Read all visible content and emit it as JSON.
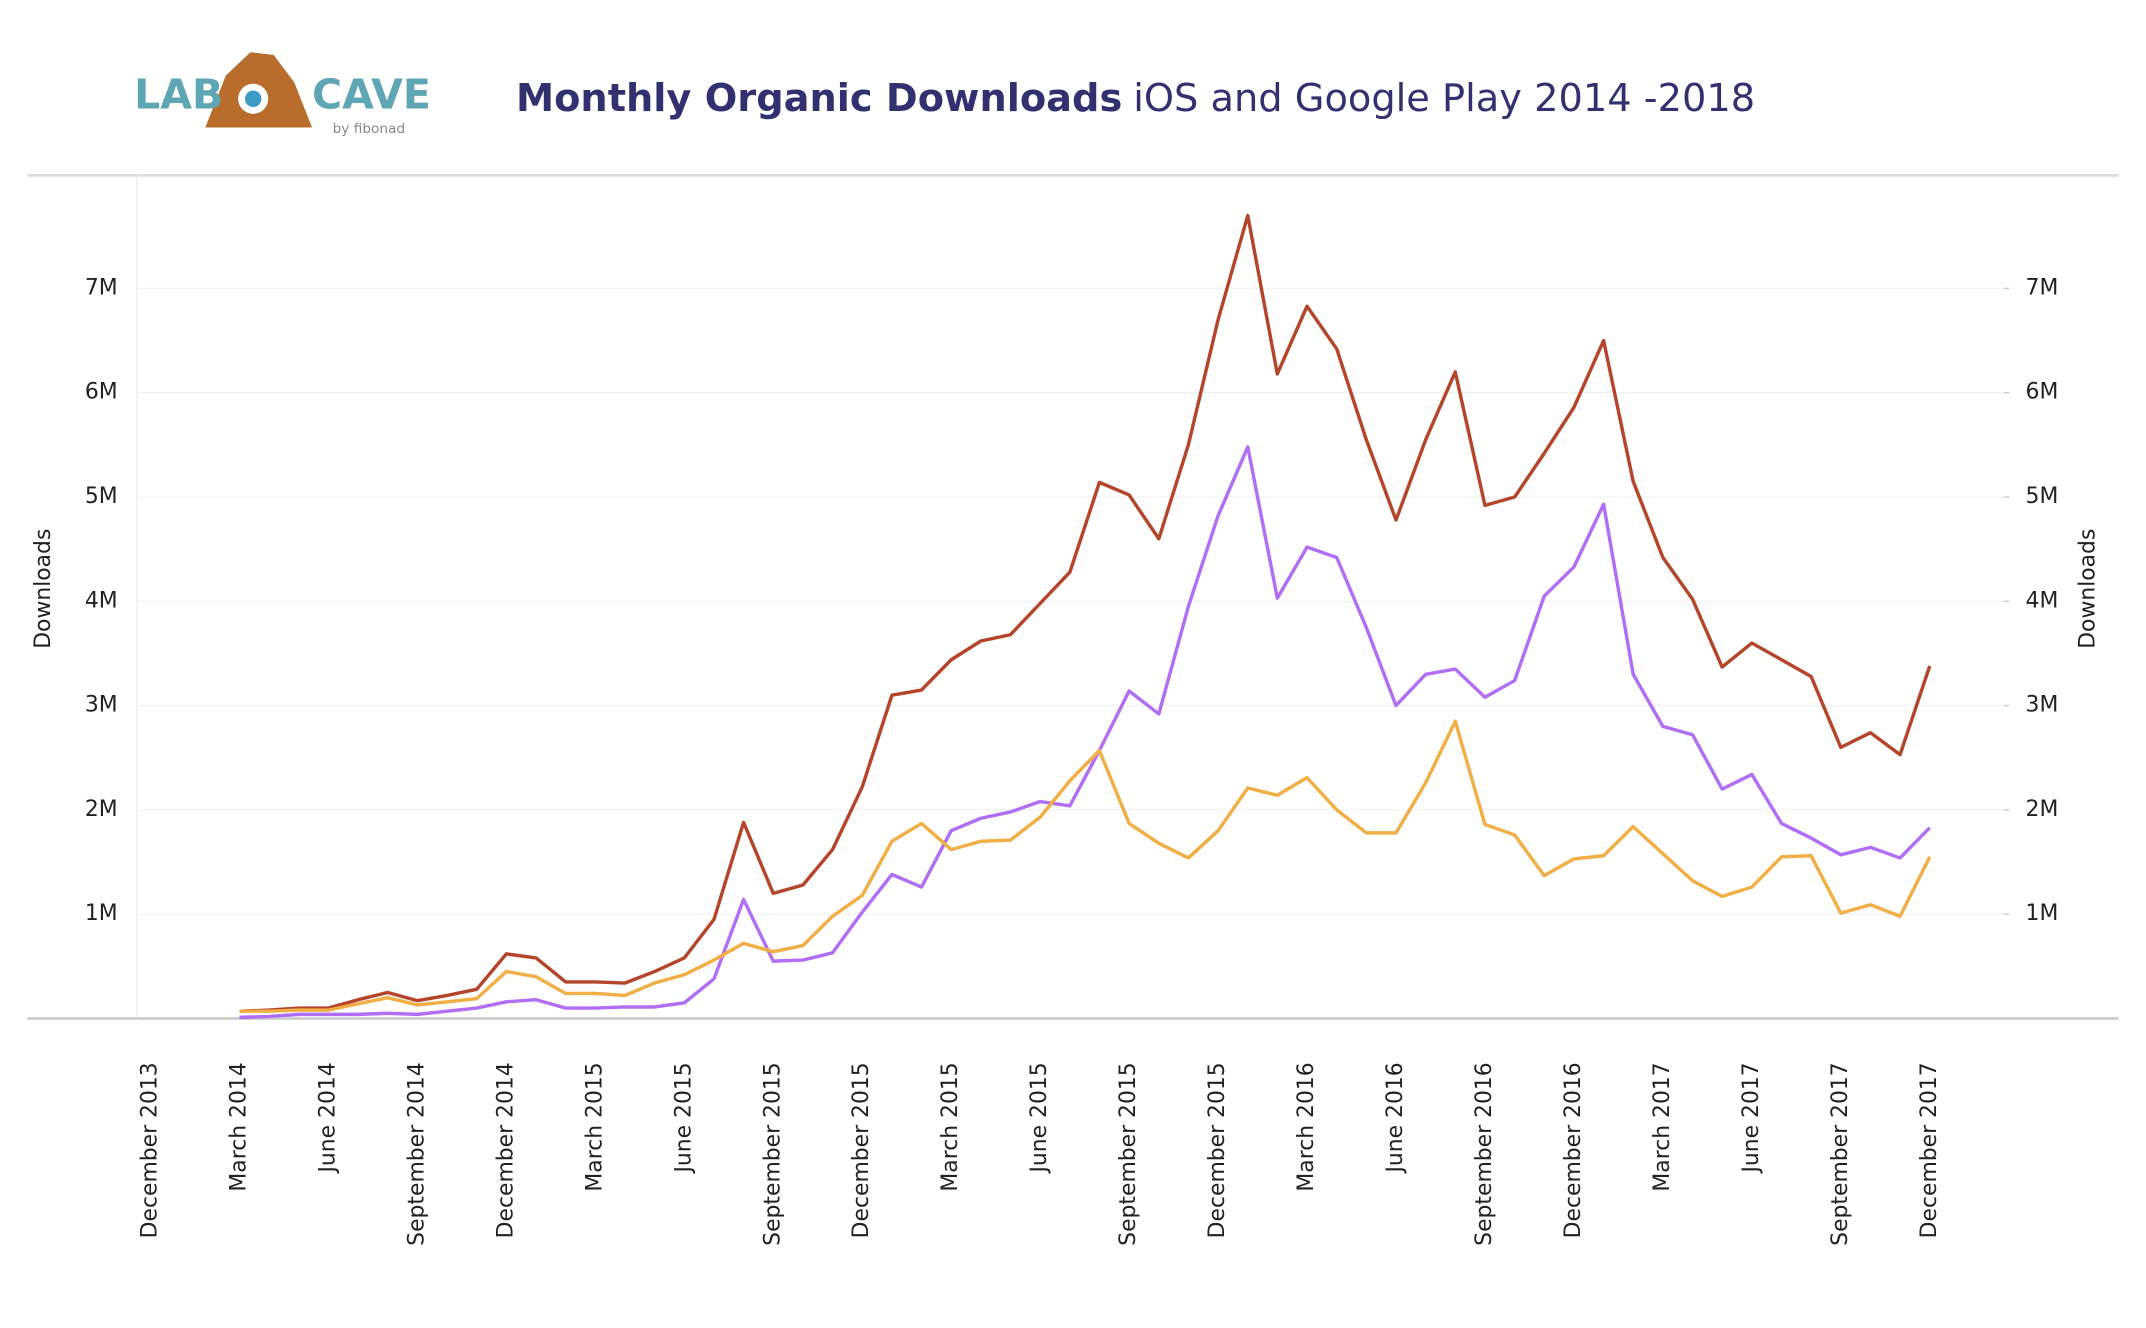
{
  "logo": {
    "left": "LAB",
    "right": "CAVE",
    "tagline": "by fibonad"
  },
  "chart_data": {
    "type": "line",
    "title": "Monthly Organic Downloads",
    "subtitle": "iOS and Google Play 2014 -2018",
    "y_label": "Downloads",
    "y2_label": "Downloads",
    "categories": [
      "December 2013",
      null,
      null,
      "March 2014",
      null,
      null,
      "June 2014",
      null,
      null,
      "September 2014",
      null,
      null,
      "December 2014",
      null,
      null,
      "March 2015",
      null,
      null,
      "June 2015",
      null,
      null,
      "September 2015",
      null,
      null,
      "December 2015",
      null,
      null,
      "March 2015",
      null,
      null,
      "June 2015",
      null,
      null,
      "September 2015",
      null,
      null,
      "December 2015",
      null,
      null,
      "March 2016",
      null,
      null,
      "June 2016",
      null,
      null,
      "September 2016",
      null,
      null,
      "December 2016",
      null,
      null,
      "March 2017",
      null,
      null,
      "June 2017",
      null,
      null,
      "September 2017",
      null,
      null,
      "December 2017"
    ],
    "ylim": [
      0,
      8
    ],
    "yticks": [
      {
        "value": 1,
        "label": "1M"
      },
      {
        "value": 2,
        "label": "2M"
      },
      {
        "value": 3,
        "label": "3M"
      },
      {
        "value": 4,
        "label": "4M"
      },
      {
        "value": 5,
        "label": "5M"
      },
      {
        "value": 6,
        "label": "6M"
      },
      {
        "value": 7,
        "label": "7M"
      }
    ],
    "y2lim": [
      0,
      8
    ],
    "y2ticks": [
      {
        "value": 1,
        "label": "1M"
      },
      {
        "value": 2,
        "label": "2M"
      },
      {
        "value": 3,
        "label": "3M"
      },
      {
        "value": 4,
        "label": "4M"
      },
      {
        "value": 5,
        "label": "5M"
      },
      {
        "value": 6,
        "label": "6M"
      },
      {
        "value": 7,
        "label": "7M"
      }
    ],
    "grid": true,
    "series": [
      {
        "color": "#b5452a",
        "values": [
          null,
          null,
          null,
          0.07,
          0.08,
          0.1,
          0.1,
          0.18,
          0.25,
          0.17,
          0.22,
          0.28,
          0.62,
          0.58,
          0.35,
          0.35,
          0.34,
          0.45,
          0.58,
          0.95,
          1.88,
          1.2,
          1.28,
          1.62,
          2.22,
          3.1,
          3.15,
          3.44,
          3.62,
          3.68,
          3.98,
          4.28,
          5.14,
          5.02,
          4.6,
          5.5,
          6.7,
          7.7,
          6.18,
          6.83,
          6.42,
          5.55,
          4.78,
          5.55,
          6.2,
          4.92,
          5.0,
          5.42,
          5.86,
          6.5,
          5.15,
          4.42,
          4.02,
          3.37,
          3.6,
          3.44,
          3.28,
          2.6,
          2.74,
          2.53,
          3.38
        ]
      },
      {
        "color": "#b06ef5",
        "values": [
          null,
          null,
          null,
          0.01,
          0.02,
          0.04,
          0.04,
          0.04,
          0.05,
          0.04,
          0.07,
          0.1,
          0.16,
          0.18,
          0.1,
          0.1,
          0.11,
          0.11,
          0.15,
          0.38,
          1.14,
          0.55,
          0.56,
          0.63,
          1.02,
          1.38,
          1.26,
          1.8,
          1.92,
          1.98,
          2.08,
          2.04,
          2.57,
          3.14,
          2.92,
          3.95,
          4.82,
          5.48,
          4.03,
          4.52,
          4.42,
          3.75,
          3.0,
          3.3,
          3.35,
          3.08,
          3.24,
          4.05,
          4.33,
          4.93,
          3.3,
          2.8,
          2.72,
          2.2,
          2.34,
          1.87,
          1.73,
          1.57,
          1.64,
          1.54,
          1.83
        ]
      },
      {
        "color": "#f0ae45",
        "values": [
          null,
          null,
          null,
          0.07,
          0.07,
          0.08,
          0.08,
          0.14,
          0.2,
          0.13,
          0.16,
          0.19,
          0.45,
          0.4,
          0.24,
          0.24,
          0.22,
          0.34,
          0.42,
          0.56,
          0.72,
          0.64,
          0.7,
          0.98,
          1.18,
          1.7,
          1.87,
          1.62,
          1.7,
          1.71,
          1.93,
          2.28,
          2.57,
          1.87,
          1.68,
          1.54,
          1.8,
          2.21,
          2.14,
          2.31,
          2.0,
          1.78,
          1.78,
          2.26,
          2.85,
          1.86,
          1.76,
          1.37,
          1.53,
          1.56,
          1.84,
          1.58,
          1.32,
          1.17,
          1.26,
          1.55,
          1.56,
          1.01,
          1.09,
          0.98,
          1.55
        ]
      }
    ]
  }
}
